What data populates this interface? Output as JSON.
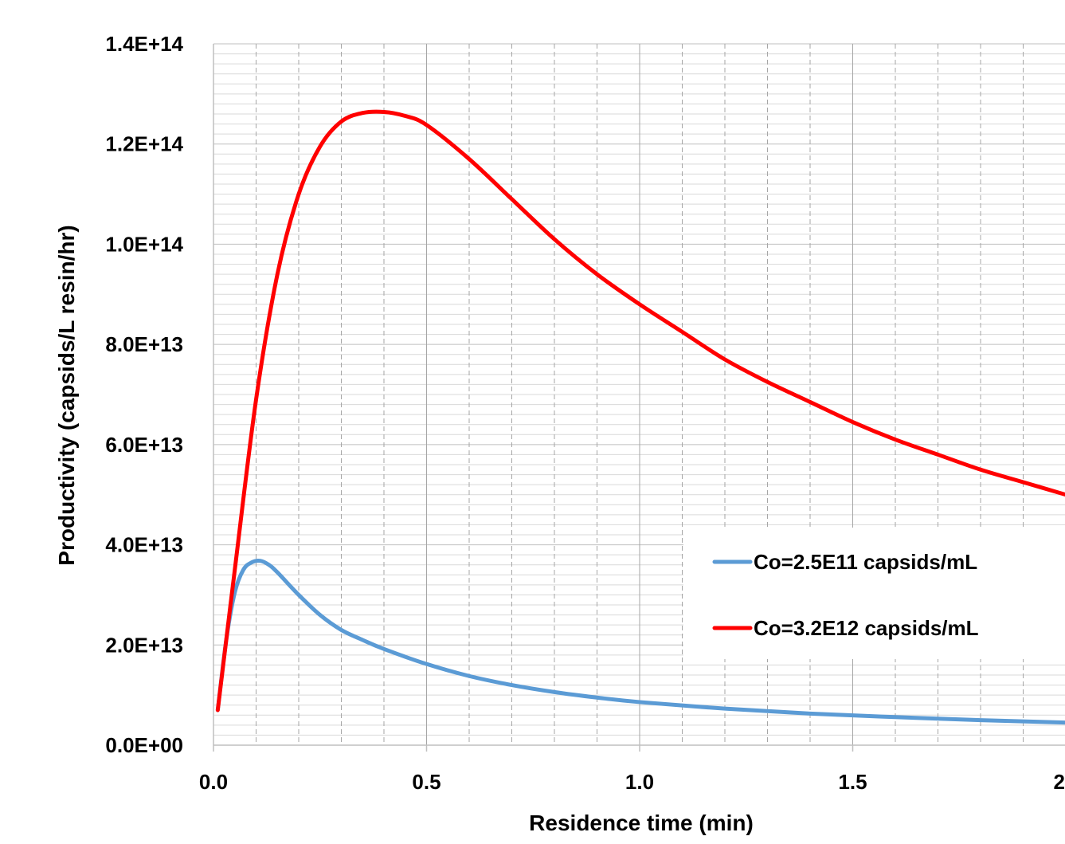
{
  "chart_data": {
    "type": "line",
    "title": "",
    "xlabel": "Residence time (min)",
    "ylabel": "Productivity (capsids/L resin/hr)",
    "xlim": [
      0,
      2.0
    ],
    "ylim": [
      0,
      140000000000000.0
    ],
    "x_ticks": [
      0.0,
      0.5,
      1.0,
      1.5,
      2.0
    ],
    "x_tick_labels": [
      "0.0",
      "0.5",
      "1.0",
      "1.5",
      "2"
    ],
    "y_ticks": [
      0,
      20000000000000.0,
      40000000000000.0,
      60000000000000.0,
      80000000000000.0,
      100000000000000.0,
      120000000000000.0,
      140000000000000.0
    ],
    "y_tick_labels": [
      "0.0E+00",
      "2.0E+13",
      "4.0E+13",
      "6.0E+13",
      "8.0E+13",
      "1.0E+14",
      "1.2E+14",
      "1.4E+14"
    ],
    "grid": true,
    "legend_position": "right",
    "series": [
      {
        "name": "Co=2.5E11 capsids/mL",
        "color": "#5B9BD5",
        "x": [
          0.01,
          0.03,
          0.05,
          0.07,
          0.09,
          0.11,
          0.13,
          0.15,
          0.2,
          0.25,
          0.3,
          0.35,
          0.4,
          0.5,
          0.6,
          0.7,
          0.8,
          0.9,
          1.0,
          1.2,
          1.4,
          1.6,
          1.8,
          2.0
        ],
        "y": [
          7000000000000.0,
          21000000000000.0,
          30500000000000.0,
          35000000000000.0,
          36500000000000.0,
          36800000000000.0,
          36000000000000.0,
          34500000000000.0,
          30000000000000.0,
          26000000000000.0,
          23000000000000.0,
          21000000000000.0,
          19200000000000.0,
          16200000000000.0,
          13800000000000.0,
          12000000000000.0,
          10600000000000.0,
          9500000000000.0,
          8600000000000.0,
          7300000000000.0,
          6300000000000.0,
          5600000000000.0,
          5000000000000.0,
          4500000000000.0
        ]
      },
      {
        "name": "Co=3.2E12 capsids/mL",
        "color": "#FF0000",
        "x": [
          0.01,
          0.05,
          0.1,
          0.15,
          0.2,
          0.25,
          0.3,
          0.35,
          0.4,
          0.45,
          0.5,
          0.6,
          0.7,
          0.8,
          0.9,
          1.0,
          1.1,
          1.2,
          1.3,
          1.4,
          1.5,
          1.6,
          1.7,
          1.8,
          1.9,
          2.0
        ],
        "y": [
          7000000000000.0,
          35000000000000.0,
          69000000000000.0,
          94000000000000.0,
          110000000000000.0,
          119500000000000.0,
          124500000000000.0,
          126200000000000.0,
          126400000000000.0,
          125600000000000.0,
          123800000000000.0,
          117000000000000.0,
          109000000000000.0,
          101000000000000.0,
          94000000000000.0,
          88000000000000.0,
          82500000000000.0,
          77000000000000.0,
          72500000000000.0,
          68500000000000.0,
          64500000000000.0,
          61000000000000.0,
          58000000000000.0,
          55000000000000.0,
          52500000000000.0,
          50000000000000.0
        ]
      }
    ]
  }
}
